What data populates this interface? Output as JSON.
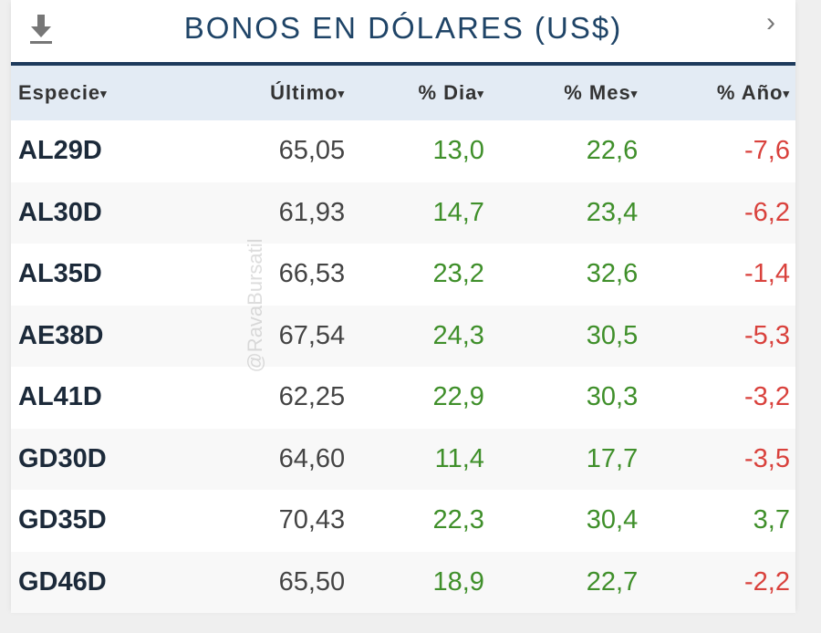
{
  "header": {
    "title": "BONOS EN DÓLARES (US$)",
    "download_icon": "download-icon",
    "next_icon": "chevron-right-icon"
  },
  "columns": [
    "Especie",
    "Último",
    "% Dia",
    "% Mes",
    "% Año"
  ],
  "sort_caret": "▾",
  "rows": [
    [
      "AL29D",
      "65,05",
      "13,0",
      "22,6",
      "-7,6"
    ],
    [
      "AL30D",
      "61,93",
      "14,7",
      "23,4",
      "-6,2"
    ],
    [
      "AL35D",
      "66,53",
      "23,2",
      "32,6",
      "-1,4"
    ],
    [
      "AE38D",
      "67,54",
      "24,3",
      "30,5",
      "-5,3"
    ],
    [
      "AL41D",
      "62,25",
      "22,9",
      "30,3",
      "-3,2"
    ],
    [
      "GD30D",
      "64,60",
      "11,4",
      "17,7",
      "-3,5"
    ],
    [
      "GD35D",
      "70,43",
      "22,3",
      "30,4",
      "3,7"
    ],
    [
      "GD46D",
      "65,50",
      "18,9",
      "22,7",
      "-2,2"
    ]
  ],
  "watermark": "@RavaBursatil",
  "colors": {
    "title": "#1f4467",
    "positive": "#3f8f2a",
    "negative": "#d9413c",
    "header_bg": "#e3ebf4"
  }
}
